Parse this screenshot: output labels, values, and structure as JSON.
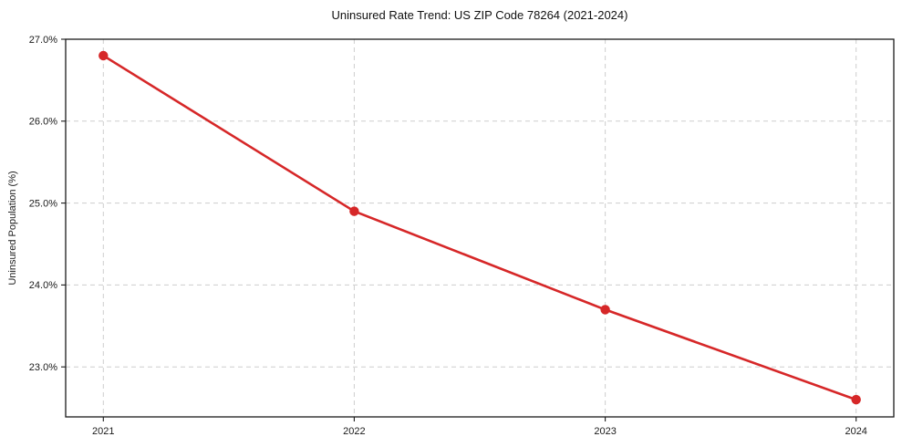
{
  "page": {
    "background": "#ffffff"
  },
  "chart_data": {
    "type": "line",
    "title": "Uninsured Rate Trend: US ZIP Code 78264 (2021-2024)",
    "xlabel": "",
    "ylabel": "Uninsured Population (%)",
    "x": [
      2021,
      2022,
      2023,
      2024
    ],
    "series": [
      {
        "name": "Uninsured rate",
        "values": [
          26.8,
          24.9,
          23.7,
          22.6
        ],
        "color": "#d62728",
        "marker": "circle"
      }
    ],
    "xticks": {
      "values": [
        2021,
        2022,
        2023,
        2024
      ],
      "labels": [
        "2021",
        "2022",
        "2023",
        "2024"
      ]
    },
    "yticks": {
      "values": [
        23.0,
        24.0,
        25.0,
        26.0,
        27.0
      ],
      "labels": [
        "23.0%",
        "24.0%",
        "25.0%",
        "26.0%",
        "27.0%"
      ]
    },
    "xlim": [
      2020.85,
      2024.15
    ],
    "ylim": [
      22.39,
      27.0
    ],
    "grid": true,
    "grid_style": "dashed",
    "legend": "none"
  },
  "style": {
    "line_color": "#d62728",
    "grid_color": "#cdcdcd",
    "spine_color": "#1a1a1a",
    "text_color": "#1a1a1a"
  }
}
